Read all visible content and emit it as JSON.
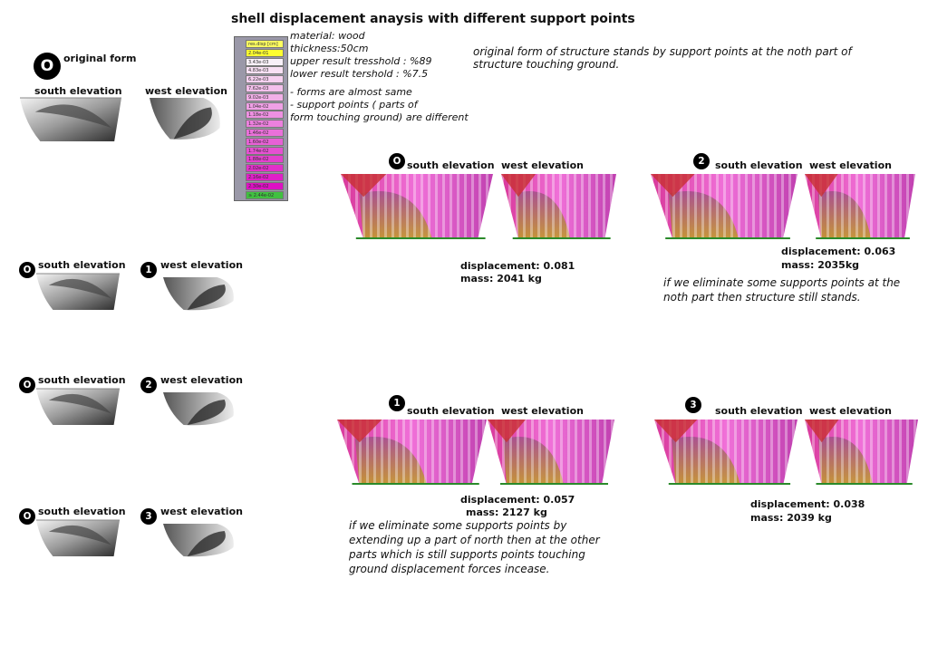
{
  "title": "shell displacement anaysis with different support points",
  "notes": [
    "material: wood",
    "thickness:50cm",
    "upper result tresshold : %89",
    "lower result tershold   : %7.5",
    "- forms are almost same",
    "- support points ( parts of",
    "form touching ground) are different"
  ],
  "legend": {
    "header": "res.disp [cm]",
    "values": [
      "2.04e-01",
      "3.43e-03",
      "4.83e-03",
      "6.22e-03",
      "7.62e-03",
      "9.02e-03",
      "1.04e-02",
      "1.18e-02",
      "1.32e-02",
      "1.46e-02",
      "1.60e-02",
      "1.74e-02",
      "1.88e-02",
      "2.02e-02",
      "2.16e-02",
      "2.30e-02",
      "≥ 2.44e-02"
    ]
  },
  "intro": "original form of structure stands by support points at the noth part of structure touching ground.",
  "original": {
    "badge": "O",
    "label": "original form",
    "south": "south elevation",
    "west": "west elevation"
  },
  "variants": [
    {
      "badge_a": "O",
      "south": "south elevation",
      "badge_b": "1",
      "west": "west elevation"
    },
    {
      "badge_a": "O",
      "south": "south elevation",
      "badge_b": "2",
      "west": "west elevation"
    },
    {
      "badge_a": "O",
      "south": "south elevation",
      "badge_b": "3",
      "west": "west elevation"
    }
  ],
  "results": [
    {
      "badge": "O",
      "south": "south elevation",
      "west": "west elevation",
      "displacement": "displacement: 0.081",
      "mass": "mass: 2041 kg"
    },
    {
      "badge": "2",
      "south": "south elevation",
      "west": "west elevation",
      "displacement": "displacement: 0.063",
      "mass": "mass: 2035kg",
      "note": "if we eliminate some supports points at the noth part then structure still stands."
    },
    {
      "badge": "1",
      "south": "south elevation",
      "west": "west elevation",
      "displacement": "displacement: 0.057",
      "mass": "mass: 2127 kg",
      "note": "if we eliminate some supports points by extending up a part of north then at the other parts which is still supports points touching ground displacement forces incease."
    },
    {
      "badge": "3",
      "south": "south elevation",
      "west": "west elevation",
      "displacement": "displacement: 0.038",
      "mass": "mass: 2039 kg"
    }
  ]
}
